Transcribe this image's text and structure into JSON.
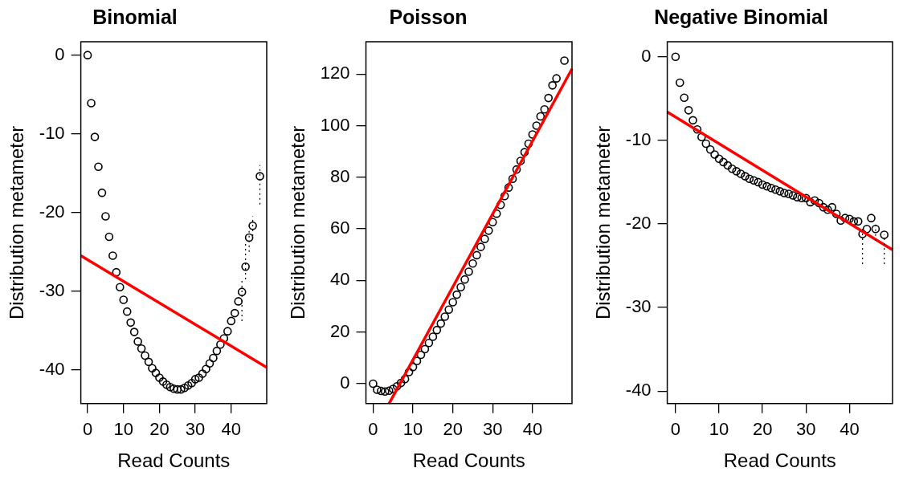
{
  "chart_data": [
    {
      "type": "scatter",
      "title": "Binomial",
      "xlabel": "Read Counts",
      "ylabel": "Distribution metameter",
      "xlim": [
        -1.9,
        49.9
      ],
      "ylim": [
        -44.3,
        1.7
      ],
      "xticks": [
        0,
        10,
        20,
        30,
        40
      ],
      "yticks": [
        -40,
        -30,
        -20,
        -10,
        0
      ],
      "grid": false,
      "series": [
        {
          "type": "scatter",
          "color": "#000000",
          "x": [
            0,
            1,
            2,
            3,
            4,
            5,
            6,
            7,
            8,
            9,
            10,
            11,
            12,
            13,
            14,
            15,
            16,
            17,
            18,
            19,
            20,
            21,
            22,
            23,
            24,
            25,
            26,
            27,
            28,
            29,
            30,
            31,
            32,
            33,
            34,
            35,
            36,
            37,
            38,
            39,
            40,
            41,
            42,
            43,
            44,
            45,
            46,
            48
          ],
          "marker": "circle",
          "values": [
            0,
            -6.1,
            -10.4,
            -14.2,
            -17.5,
            -20.5,
            -23.1,
            -25.5,
            -27.6,
            -29.5,
            -31.1,
            -32.6,
            -34.0,
            -35.2,
            -36.4,
            -37.3,
            -38.2,
            -39.0,
            -39.8,
            -40.4,
            -41.0,
            -41.5,
            -41.9,
            -42.2,
            -42.4,
            -42.5,
            -42.5,
            -42.3,
            -42.0,
            -41.7,
            -41.2,
            -41.0,
            -40.5,
            -39.9,
            -39.2,
            -38.5,
            -37.6,
            -36.8,
            -36.0,
            -35.1,
            -33.8,
            -32.8,
            -31.3,
            -30.1,
            -26.9,
            -23.2,
            -21.7,
            -15.4
          ],
          "errors": [
            null,
            null,
            null,
            null,
            null,
            null,
            null,
            null,
            null,
            null,
            null,
            null,
            null,
            null,
            null,
            null,
            null,
            null,
            null,
            null,
            null,
            null,
            null,
            null,
            null,
            null,
            null,
            null,
            null,
            null,
            null,
            null,
            null,
            null,
            null,
            null,
            null,
            null,
            null,
            null,
            null,
            null,
            null,
            [
              -33.8,
              -28.7
            ],
            [
              -28.5,
              -24.0
            ],
            [
              -25.0,
              -22.0
            ],
            [
              -23.0,
              -20.5
            ],
            [
              -19.0,
              -14.0
            ]
          ]
        },
        {
          "type": "line",
          "color": "#ff0000",
          "marker": "none",
          "x": [
            -1.9,
            49.9
          ],
          "values": [
            -25.5,
            -39.7
          ]
        }
      ]
    },
    {
      "type": "scatter",
      "title": "Poisson",
      "xlabel": "Read Counts",
      "ylabel": "Distribution metameter",
      "xlim": [
        -1.8,
        49.9
      ],
      "ylim": [
        -7.7,
        132.5
      ],
      "xticks": [
        0,
        10,
        20,
        30,
        40
      ],
      "yticks": [
        0,
        20,
        40,
        60,
        80,
        100,
        120
      ],
      "grid": false,
      "series": [
        {
          "type": "scatter",
          "color": "#000000",
          "x": [
            0,
            1,
            2,
            3,
            4,
            5,
            6,
            7,
            8,
            9,
            10,
            11,
            12,
            13,
            14,
            15,
            16,
            17,
            18,
            19,
            20,
            21,
            22,
            23,
            24,
            25,
            26,
            27,
            28,
            29,
            30,
            31,
            32,
            33,
            34,
            35,
            36,
            37,
            38,
            39,
            40,
            41,
            42,
            43,
            44,
            45,
            46,
            48
          ],
          "marker": "circle",
          "values": [
            0,
            -2.3,
            -2.8,
            -3.0,
            -2.7,
            -2.0,
            -1.0,
            0.3,
            1.8,
            4.5,
            6.5,
            8.8,
            11.2,
            13.4,
            15.8,
            18.2,
            20.8,
            23.3,
            26.0,
            28.7,
            31.6,
            34.5,
            37.4,
            40.4,
            43.4,
            46.6,
            49.8,
            53.0,
            56.1,
            59.3,
            62.6,
            65.9,
            69.3,
            72.7,
            76.0,
            79.4,
            83.0,
            86.3,
            89.7,
            93.0,
            96.6,
            100.0,
            103.6,
            106.3,
            110.7,
            115.6,
            118.3,
            125.2
          ]
        },
        {
          "type": "line",
          "color": "#ff0000",
          "marker": "none",
          "x": [
            4.0,
            49.9
          ],
          "values": [
            -7.7,
            122.0
          ]
        }
      ]
    },
    {
      "type": "scatter",
      "title": "Negative Binomial",
      "xlabel": "Read Counts",
      "ylabel": "Distribution metameter",
      "xlim": [
        -1.9,
        49.9
      ],
      "ylim": [
        -41.5,
        1.8
      ],
      "xticks": [
        0,
        10,
        20,
        30,
        40
      ],
      "yticks": [
        -40,
        -30,
        -20,
        -10,
        0
      ],
      "grid": false,
      "series": [
        {
          "type": "scatter",
          "color": "#000000",
          "x": [
            0,
            1,
            2,
            3,
            4,
            5,
            6,
            7,
            8,
            9,
            10,
            11,
            12,
            13,
            14,
            15,
            16,
            17,
            18,
            19,
            20,
            21,
            22,
            23,
            24,
            25,
            26,
            27,
            28,
            29,
            30,
            31,
            32,
            33,
            34,
            35,
            36,
            37,
            38,
            39,
            40,
            41,
            42,
            43,
            44,
            45,
            46,
            48
          ],
          "marker": "circle",
          "values": [
            0,
            -3.1,
            -4.9,
            -6.4,
            -7.6,
            -8.7,
            -9.6,
            -10.4,
            -11.1,
            -11.7,
            -12.2,
            -12.6,
            -13.0,
            -13.4,
            -13.7,
            -14.0,
            -14.3,
            -14.6,
            -14.8,
            -15.0,
            -15.3,
            -15.5,
            -15.7,
            -15.9,
            -16.1,
            -16.3,
            -16.4,
            -16.6,
            -16.8,
            -16.9,
            -16.9,
            -17.4,
            -17.2,
            -17.5,
            -18.0,
            -18.3,
            -18.0,
            -18.8,
            -19.6,
            -19.3,
            -19.4,
            -19.7,
            -19.7,
            -21.2,
            -20.6,
            -19.3,
            -20.6,
            -21.3
          ],
          "errors": [
            null,
            null,
            null,
            null,
            null,
            null,
            null,
            null,
            null,
            null,
            null,
            null,
            null,
            null,
            null,
            null,
            null,
            null,
            null,
            null,
            null,
            null,
            null,
            null,
            null,
            null,
            null,
            null,
            null,
            null,
            null,
            null,
            null,
            null,
            null,
            null,
            null,
            null,
            null,
            null,
            null,
            null,
            null,
            [
              -24.8,
              -20.5
            ],
            null,
            null,
            [
              -22.0,
              -20.0
            ],
            [
              -24.8,
              -21.3
            ]
          ]
        },
        {
          "type": "line",
          "color": "#ff0000",
          "marker": "none",
          "x": [
            -1.9,
            49.9
          ],
          "values": [
            -6.6,
            -23.1
          ]
        }
      ]
    }
  ]
}
